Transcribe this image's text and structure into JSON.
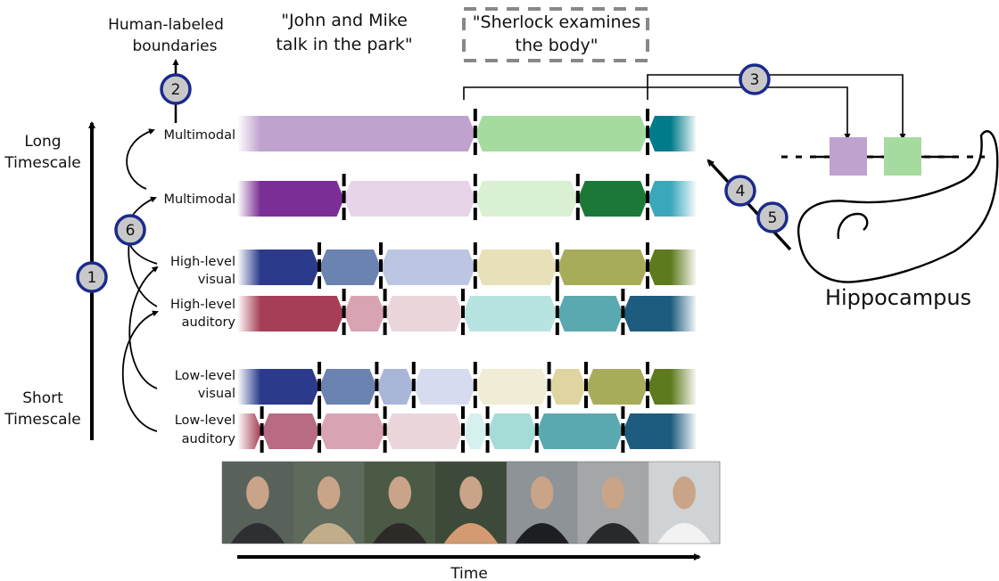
{
  "header": {
    "human_labeled": [
      "Human-labeled",
      "boundaries"
    ],
    "quote_left": [
      "\"John and Mike",
      "talk in the park\""
    ],
    "quote_right": [
      "\"Sherlock examines",
      "the body\""
    ]
  },
  "axis": {
    "long": [
      "Long",
      "Timescale"
    ],
    "short": [
      "Short",
      "Timescale"
    ],
    "time": "Time"
  },
  "hippocampus": {
    "label": "Hippocampus"
  },
  "steps": [
    "1",
    "2",
    "3",
    "4",
    "5",
    "6"
  ],
  "event_colors": [
    "#c0a2ce",
    "#a6dba0"
  ],
  "rows": [
    {
      "label": [
        "Multimodal"
      ],
      "segments": [
        {
          "start": 0.0,
          "end": 0.58,
          "color": "#c0a2ce"
        },
        {
          "start": 0.58,
          "end": 1.0,
          "color": "#a6dba0"
        },
        {
          "start": 1.0,
          "end": 1.2,
          "color": "#007b8a"
        }
      ],
      "boundaries": [
        0.58,
        1.0
      ]
    },
    {
      "label": [
        "Multimodal"
      ],
      "segments": [
        {
          "start": 0.0,
          "end": 0.26,
          "color": "#7b2f96"
        },
        {
          "start": 0.26,
          "end": 0.58,
          "color": "#e7d4e8"
        },
        {
          "start": 0.58,
          "end": 0.83,
          "color": "#d9f0d3"
        },
        {
          "start": 0.83,
          "end": 1.0,
          "color": "#1b7837"
        },
        {
          "start": 1.0,
          "end": 1.2,
          "color": "#3aa7bb"
        }
      ],
      "boundaries": [
        0.26,
        0.58,
        0.83,
        1.0
      ]
    },
    {
      "label": [
        "High-level",
        "visual"
      ],
      "segments": [
        {
          "start": 0.0,
          "end": 0.2,
          "color": "#2c3a8c"
        },
        {
          "start": 0.2,
          "end": 0.35,
          "color": "#6b83b0"
        },
        {
          "start": 0.35,
          "end": 0.58,
          "color": "#bcc6e3"
        },
        {
          "start": 0.58,
          "end": 0.78,
          "color": "#e8e0b8"
        },
        {
          "start": 0.78,
          "end": 1.0,
          "color": "#a7ac5a"
        },
        {
          "start": 1.0,
          "end": 1.2,
          "color": "#5e7a1e"
        }
      ],
      "boundaries": [
        0.2,
        0.35,
        0.58,
        0.78,
        1.0
      ]
    },
    {
      "label": [
        "High-level",
        "auditory"
      ],
      "segments": [
        {
          "start": 0.0,
          "end": 0.26,
          "color": "#a63f55"
        },
        {
          "start": 0.26,
          "end": 0.36,
          "color": "#d8a4b3"
        },
        {
          "start": 0.36,
          "end": 0.55,
          "color": "#ead5da"
        },
        {
          "start": 0.55,
          "end": 0.78,
          "color": "#b7e3e0"
        },
        {
          "start": 0.78,
          "end": 0.94,
          "color": "#5aa8b0"
        },
        {
          "start": 0.94,
          "end": 1.2,
          "color": "#1d5c7e"
        }
      ],
      "boundaries": [
        0.26,
        0.36,
        0.55,
        0.78,
        0.94
      ]
    },
    {
      "label": [
        "Low-level",
        "visual"
      ],
      "segments": [
        {
          "start": 0.0,
          "end": 0.2,
          "color": "#2c3a8c"
        },
        {
          "start": 0.2,
          "end": 0.34,
          "color": "#6b83b0"
        },
        {
          "start": 0.34,
          "end": 0.43,
          "color": "#a9b6d8"
        },
        {
          "start": 0.43,
          "end": 0.58,
          "color": "#d6dbef"
        },
        {
          "start": 0.58,
          "end": 0.76,
          "color": "#f1ecd6"
        },
        {
          "start": 0.76,
          "end": 0.85,
          "color": "#ded5a0"
        },
        {
          "start": 0.85,
          "end": 1.0,
          "color": "#a7ac5a"
        },
        {
          "start": 1.0,
          "end": 1.2,
          "color": "#5e7a1e"
        }
      ],
      "boundaries": [
        0.2,
        0.34,
        0.43,
        0.58,
        0.76,
        0.85,
        1.0
      ]
    },
    {
      "label": [
        "Low-level",
        "auditory"
      ],
      "segments": [
        {
          "start": -0.04,
          "end": 0.06,
          "color": "#a63f55"
        },
        {
          "start": 0.06,
          "end": 0.2,
          "color": "#b86b82"
        },
        {
          "start": 0.2,
          "end": 0.36,
          "color": "#d8a4b3"
        },
        {
          "start": 0.36,
          "end": 0.55,
          "color": "#ead5da"
        },
        {
          "start": 0.55,
          "end": 0.61,
          "color": "#d5f0ed"
        },
        {
          "start": 0.61,
          "end": 0.73,
          "color": "#a4dcd8"
        },
        {
          "start": 0.73,
          "end": 0.94,
          "color": "#5aa8b0"
        },
        {
          "start": 0.94,
          "end": 1.2,
          "color": "#1d5c7e"
        }
      ],
      "boundaries": [
        0.06,
        0.2,
        0.36,
        0.55,
        0.61,
        0.73,
        0.94
      ]
    }
  ],
  "frames": [
    {
      "bg": "#59625a",
      "figure": "#2e2f33"
    },
    {
      "bg": "#5d6a5c",
      "figure": "#c2ad8a"
    },
    {
      "bg": "#4a5a44",
      "figure": "#2d2a28"
    },
    {
      "bg": "#3d4a39",
      "figure": "#d49b72"
    },
    {
      "bg": "#8e9397",
      "figure": "#1d1e22"
    },
    {
      "bg": "#a4a6a8",
      "figure": "#27292d"
    },
    {
      "bg": "#cfd3d5",
      "figure": "#f2f2f2"
    }
  ]
}
